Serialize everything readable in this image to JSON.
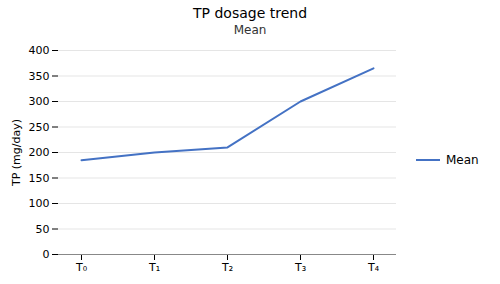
{
  "chart_data": {
    "type": "line",
    "title": "TP dosage trend",
    "subtitle": "Mean",
    "ylabel": "TP (mg/day)",
    "categories": [
      "T₀",
      "T₁",
      "T₂",
      "T₃",
      "T₄"
    ],
    "series": [
      {
        "name": "Mean",
        "color": "#4472C4",
        "values": [
          185,
          200,
          210,
          300,
          365
        ]
      }
    ],
    "ylim": [
      0,
      400
    ],
    "yticks": [
      0,
      50,
      100,
      150,
      200,
      250,
      300,
      350,
      400
    ],
    "grid": true,
    "legend": "right"
  }
}
